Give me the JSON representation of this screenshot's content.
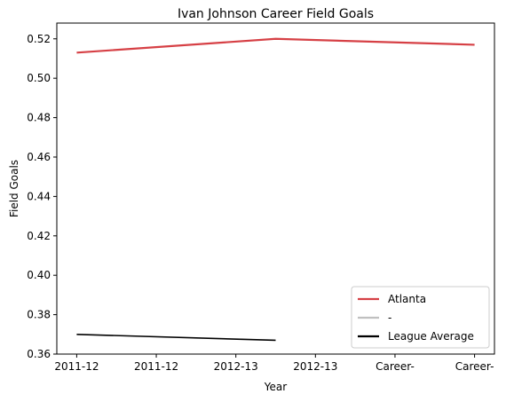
{
  "chart_data": {
    "type": "line",
    "title": "Ivan Johnson  Career Field Goals",
    "xlabel": "Year",
    "ylabel": "Field Goals",
    "ylim": [
      0.36,
      0.528
    ],
    "yticks": [
      0.36,
      0.38,
      0.4,
      0.42,
      0.44,
      0.46,
      0.48,
      0.5,
      0.52
    ],
    "ytick_labels": [
      "0.36",
      "0.38",
      "0.40",
      "0.42",
      "0.44",
      "0.46",
      "0.48",
      "0.50",
      "0.52"
    ],
    "xlim": [
      -0.1,
      2.1
    ],
    "xticks": [
      0,
      0.4,
      0.8,
      1.2,
      1.6,
      2.0
    ],
    "xtick_labels": [
      "2011-12",
      "2011-12",
      "2012-13",
      "2012-13",
      "Career-",
      "Career-"
    ],
    "grid": false,
    "legend_position": "lower-right",
    "series": [
      {
        "name": "Atlanta",
        "color": "#d64045",
        "x": [
          0,
          1,
          2
        ],
        "values": [
          0.513,
          0.52,
          0.517
        ]
      },
      {
        "name": "-",
        "color": "#c0c0c0",
        "x": [],
        "values": []
      },
      {
        "name": "League Average",
        "color": "#000000",
        "x": [
          0,
          1
        ],
        "values": [
          0.37,
          0.367
        ]
      }
    ]
  }
}
